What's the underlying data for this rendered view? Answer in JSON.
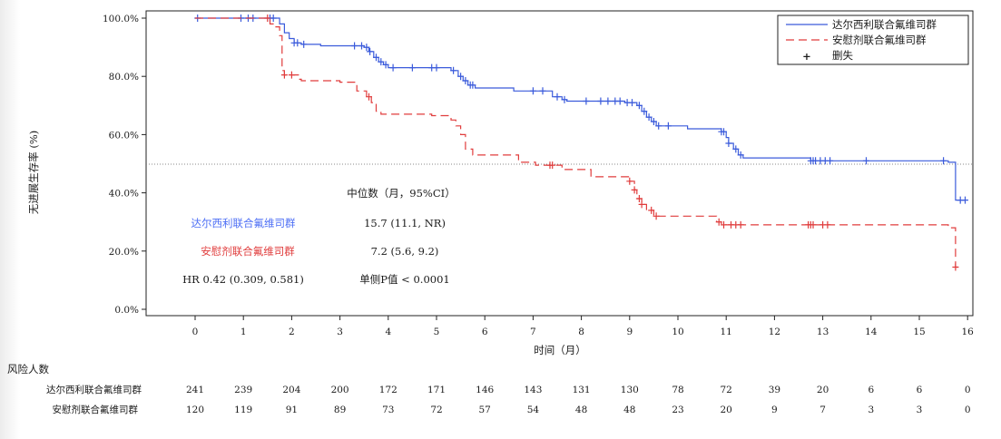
{
  "chart_data": {
    "type": "line",
    "chart_kind": "kaplan-meier",
    "xlabel": "时间（月）",
    "ylabel": "无进展生存率 (%)",
    "x_ticks": [
      0,
      1,
      2,
      3,
      4,
      5,
      6,
      7,
      8,
      9,
      10,
      11,
      12,
      13,
      14,
      15,
      16
    ],
    "y_ticks": [
      "0.0%",
      "20.0%",
      "40.0%",
      "60.0%",
      "80.0%",
      "100.0%"
    ],
    "xlim": [
      -1,
      16.1
    ],
    "ylim": [
      -1,
      101
    ],
    "reference_line_y": 50,
    "legend": {
      "placement": "top-right",
      "censor_label": "删失",
      "censor_symbol": "+"
    },
    "series": [
      {
        "name": "达尔西利联合氟维司群",
        "color": "#3b5bdb",
        "dash": "solid",
        "steps": [
          [
            0,
            100
          ],
          [
            1.6,
            100
          ],
          [
            1.75,
            98
          ],
          [
            1.85,
            95
          ],
          [
            1.95,
            93
          ],
          [
            2.05,
            91.5
          ],
          [
            2.2,
            91
          ],
          [
            2.6,
            90.5
          ],
          [
            3.5,
            90
          ],
          [
            3.6,
            88.5
          ],
          [
            3.7,
            86.5
          ],
          [
            3.8,
            85
          ],
          [
            3.9,
            84
          ],
          [
            4.0,
            83
          ],
          [
            5.3,
            82
          ],
          [
            5.45,
            80
          ],
          [
            5.55,
            78.5
          ],
          [
            5.65,
            77
          ],
          [
            5.8,
            76
          ],
          [
            6.6,
            75
          ],
          [
            7.4,
            73
          ],
          [
            7.6,
            72
          ],
          [
            7.7,
            71.5
          ],
          [
            8.9,
            71
          ],
          [
            9.15,
            70
          ],
          [
            9.25,
            68
          ],
          [
            9.35,
            66
          ],
          [
            9.45,
            64.5
          ],
          [
            9.55,
            63
          ],
          [
            10.2,
            62
          ],
          [
            10.9,
            61
          ],
          [
            11.0,
            59
          ],
          [
            11.05,
            57
          ],
          [
            11.15,
            55
          ],
          [
            11.25,
            53
          ],
          [
            11.35,
            52
          ],
          [
            12.75,
            51
          ],
          [
            15.6,
            50.5
          ],
          [
            15.75,
            37.5
          ],
          [
            15.95,
            37.5
          ]
        ],
        "censor_x": [
          0.05,
          0.95,
          1.1,
          1.2,
          1.55,
          1.62,
          2.05,
          2.12,
          2.25,
          3.3,
          3.45,
          3.55,
          3.62,
          3.75,
          3.85,
          3.95,
          4.1,
          4.5,
          4.9,
          5.0,
          5.35,
          5.5,
          5.6,
          5.7,
          5.75,
          7.0,
          7.2,
          7.5,
          7.65,
          8.1,
          8.4,
          8.55,
          8.7,
          8.8,
          8.95,
          9.05,
          9.2,
          9.3,
          9.4,
          9.5,
          9.6,
          9.8,
          10.9,
          10.95,
          11.05,
          11.2,
          11.3,
          12.75,
          12.8,
          12.85,
          12.95,
          13.05,
          13.15,
          13.9,
          15.5,
          15.85,
          15.95
        ]
      },
      {
        "name": "安慰剂联合氟维司群",
        "color": "#e03c3c",
        "dash": "dashed",
        "steps": [
          [
            0,
            100
          ],
          [
            1.55,
            98
          ],
          [
            1.65,
            97
          ],
          [
            1.75,
            94
          ],
          [
            1.8,
            82
          ],
          [
            1.85,
            80.5
          ],
          [
            2.15,
            79
          ],
          [
            2.2,
            78.5
          ],
          [
            3.0,
            78
          ],
          [
            3.35,
            75
          ],
          [
            3.55,
            73
          ],
          [
            3.65,
            71
          ],
          [
            3.75,
            68
          ],
          [
            3.85,
            67
          ],
          [
            4.9,
            66.5
          ],
          [
            5.3,
            65
          ],
          [
            5.4,
            63
          ],
          [
            5.5,
            60
          ],
          [
            5.6,
            55
          ],
          [
            5.75,
            53
          ],
          [
            6.7,
            50.5
          ],
          [
            7.05,
            49.5
          ],
          [
            7.6,
            48
          ],
          [
            8.2,
            45.5
          ],
          [
            9.0,
            44
          ],
          [
            9.1,
            41
          ],
          [
            9.15,
            38
          ],
          [
            9.25,
            36
          ],
          [
            9.35,
            34
          ],
          [
            9.5,
            32
          ],
          [
            10.8,
            30
          ],
          [
            10.9,
            29
          ],
          [
            15.6,
            28
          ],
          [
            15.75,
            14.5
          ],
          [
            15.8,
            14.5
          ]
        ],
        "censor_x": [
          1.5,
          1.85,
          2.0,
          3.6,
          7.35,
          7.4,
          9.0,
          9.1,
          9.2,
          9.25,
          9.45,
          9.55,
          10.85,
          10.95,
          11.1,
          11.2,
          11.3,
          12.7,
          12.75,
          12.8,
          13.0,
          13.1,
          15.75
        ]
      }
    ],
    "annotation": {
      "header": "中位数（月，95%CI）",
      "rows": [
        {
          "label": "达尔西利联合氟维司群",
          "value": "15.7 (11.1, NR)",
          "color": "#4c6ef5"
        },
        {
          "label": "安慰剂联合氟维司群",
          "value": "7.2 (5.6, 9.2)",
          "color": "#e03c3c"
        },
        {
          "label": "HR 0.42 (0.309, 0.581)",
          "value": "单侧P值 < 0.0001",
          "color": "#1a1a1a"
        }
      ]
    },
    "risk_table": {
      "title": "风险人数",
      "rows": [
        {
          "label": "达尔西利联合氟维司群",
          "values": [
            "241",
            "239",
            "204",
            "200",
            "172",
            "171",
            "146",
            "143",
            "131",
            "130",
            "78",
            "72",
            "39",
            "20",
            "6",
            "6",
            "0"
          ]
        },
        {
          "label": "安慰剂联合氟维司群",
          "values": [
            "120",
            "119",
            "91",
            "89",
            "73",
            "72",
            "57",
            "54",
            "48",
            "48",
            "23",
            "20",
            "9",
            "7",
            "3",
            "3",
            "0"
          ]
        }
      ]
    }
  }
}
